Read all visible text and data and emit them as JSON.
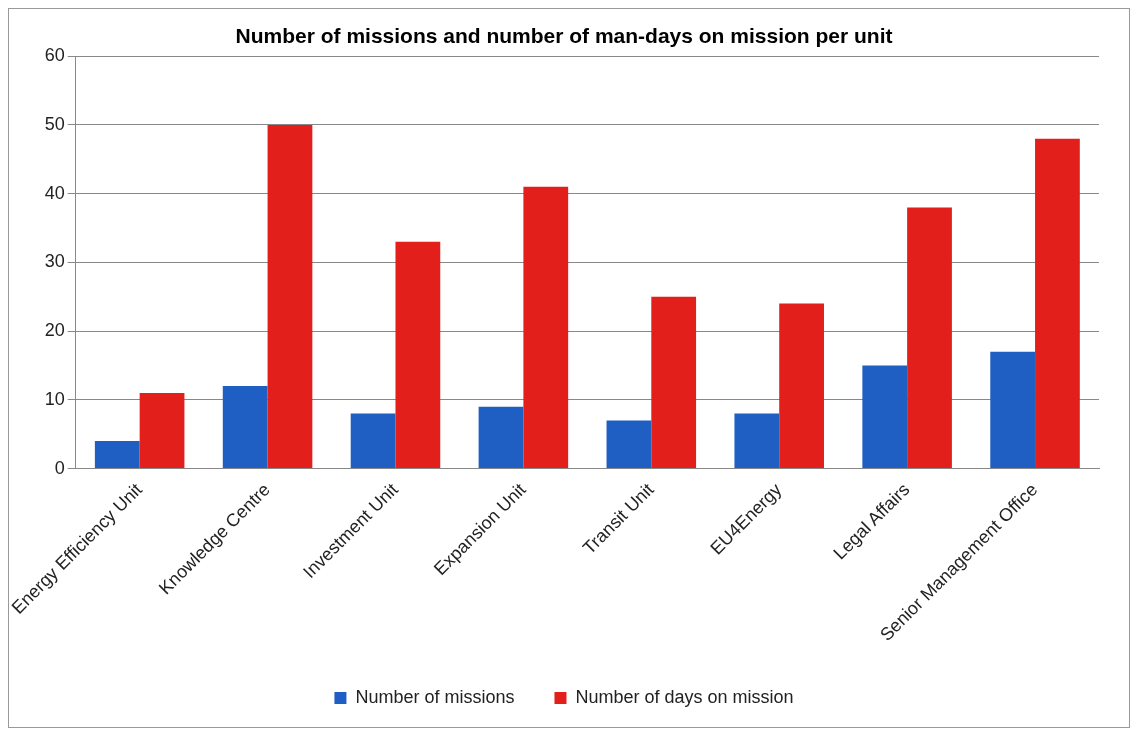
{
  "chart_data": {
    "type": "bar",
    "title": "Number of missions and number of man-days on mission per unit",
    "categories": [
      "Energy Efficiency Unit",
      "Knowledge Centre",
      "Investment Unit",
      "Expansion Unit",
      "Transit Unit",
      "EU4Energy",
      "Legal Affairs",
      "Senior Management Office"
    ],
    "series": [
      {
        "name": "Number of missions",
        "color": "#1f5fc4",
        "values": [
          4,
          12,
          8,
          9,
          7,
          8,
          15,
          17
        ]
      },
      {
        "name": "Number of days on mission",
        "color": "#e21f1a",
        "values": [
          11,
          50,
          33,
          41,
          25,
          24,
          38,
          48
        ]
      }
    ],
    "ylim": [
      0,
      60
    ],
    "yticks": [
      0,
      10,
      20,
      30,
      40,
      50,
      60
    ],
    "grid": "y",
    "legend": "bottom"
  }
}
